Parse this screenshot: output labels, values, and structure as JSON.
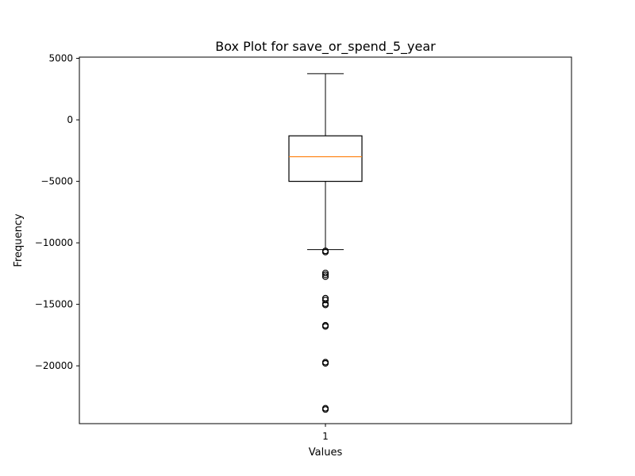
{
  "chart_data": {
    "type": "box",
    "title": "Box Plot for save_or_spend_5_year",
    "xlabel": "Values",
    "ylabel": "Frequency",
    "categories": [
      "1"
    ],
    "ylim": [
      -24700,
      5100
    ],
    "yticks": [
      5000,
      0,
      -5000,
      -10000,
      -15000,
      -20000
    ],
    "ytick_labels": [
      "5000",
      "0",
      "−5000",
      "−10000",
      "−15000",
      "−20000"
    ],
    "series": [
      {
        "whisker_high": 3750,
        "q3": -1300,
        "median": -3000,
        "q1": -5000,
        "whisker_low": -10550,
        "outliers": [
          -10650,
          -10750,
          -12450,
          -12600,
          -12750,
          -14500,
          -14650,
          -14950,
          -15050,
          -16700,
          -16800,
          -19700,
          -19800,
          -23450,
          -23550
        ]
      }
    ]
  },
  "colors": {
    "box_edge": "#000000",
    "median_line": "#ff7f0e",
    "outlier_edge": "#000000",
    "background": "#ffffff"
  }
}
